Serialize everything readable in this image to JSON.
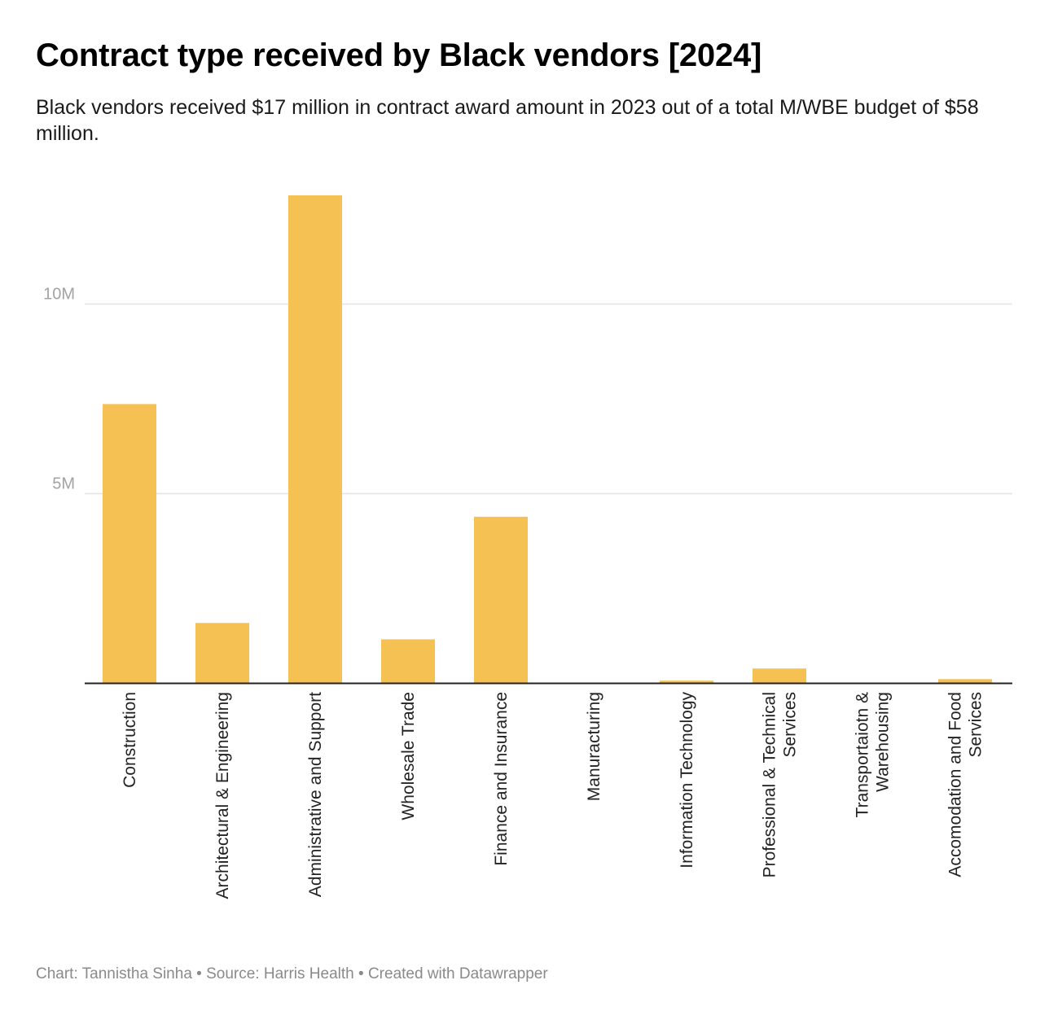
{
  "title": "Contract type received by Black vendors [2024]",
  "subtitle": "Black vendors received $17 million in contract award amount in 2023 out of a total M/WBE budget of $58 million.",
  "footer": {
    "chart_label": "Chart: Tannistha Sinha",
    "source_label": "Source: Harris Health",
    "created_label": "Created with Datawrapper",
    "separator": "•"
  },
  "colors": {
    "bar": "#f5c152",
    "grid": "#e3e3e3",
    "axis": "#222222",
    "tick_text": "#a3a3a3",
    "category_text": "#222222"
  },
  "chart_data": {
    "type": "bar",
    "categories": [
      [
        "Construction"
      ],
      [
        "Architectural & Engineering"
      ],
      [
        "Administrative and Support"
      ],
      [
        "Wholesale Trade"
      ],
      [
        "Finance and Insurance"
      ],
      [
        "Manuracturing"
      ],
      [
        "Information Technology"
      ],
      [
        "Professional & Technical",
        "Services"
      ],
      [
        "Transportaiotn &",
        "Warehousing"
      ],
      [
        "Accomodation and Food",
        "Services"
      ]
    ],
    "values": [
      7350000,
      1580000,
      12850000,
      1150000,
      4380000,
      0,
      60000,
      380000,
      0,
      100000
    ],
    "ylim": [
      0,
      12850000
    ],
    "yticks": [
      {
        "value": 5000000,
        "label": "5M"
      },
      {
        "value": 10000000,
        "label": "10M"
      }
    ],
    "xlabel": "",
    "ylabel": "",
    "grid": true,
    "category_label_orientation": "vertical"
  }
}
